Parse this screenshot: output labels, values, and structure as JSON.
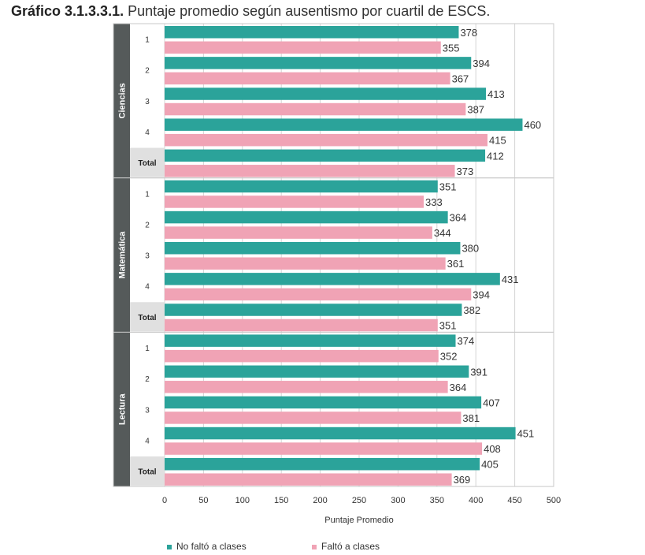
{
  "title": {
    "prefix": "Gráfico 3.1.3.3.1.",
    "text": "Puntaje promedio según ausentismo por cuartil de ESCS."
  },
  "colors": {
    "no_falto": "#2ba39a",
    "falto": "#f0a3b5",
    "panel": "#555a5a",
    "total_bg": "#e0e0e0",
    "grid": "#d4d4d4"
  },
  "chart_data": {
    "type": "bar",
    "orientation": "horizontal",
    "xlabel": "Puntaje Promedio",
    "xlim": [
      0,
      500
    ],
    "xticks": [
      0,
      50,
      100,
      150,
      200,
      250,
      300,
      350,
      400,
      450,
      500
    ],
    "grid": true,
    "legend_position": "bottom",
    "series": [
      {
        "name": "No faltó a clases",
        "key": "no_falto"
      },
      {
        "name": "Faltó a clases",
        "key": "falto"
      }
    ],
    "panels": [
      {
        "subject": "Ciencias",
        "categories": [
          "1",
          "2",
          "3",
          "4",
          "Total"
        ],
        "no_falto": [
          378,
          394,
          413,
          460,
          412
        ],
        "falto": [
          355,
          367,
          387,
          415,
          373
        ]
      },
      {
        "subject": "Matemática",
        "categories": [
          "1",
          "2",
          "3",
          "4",
          "Total"
        ],
        "no_falto": [
          351,
          364,
          380,
          431,
          382
        ],
        "falto": [
          333,
          344,
          361,
          394,
          351
        ]
      },
      {
        "subject": "Lectura",
        "categories": [
          "1",
          "2",
          "3",
          "4",
          "Total"
        ],
        "no_falto": [
          374,
          391,
          407,
          451,
          405
        ],
        "falto": [
          352,
          364,
          381,
          408,
          369
        ]
      }
    ]
  }
}
